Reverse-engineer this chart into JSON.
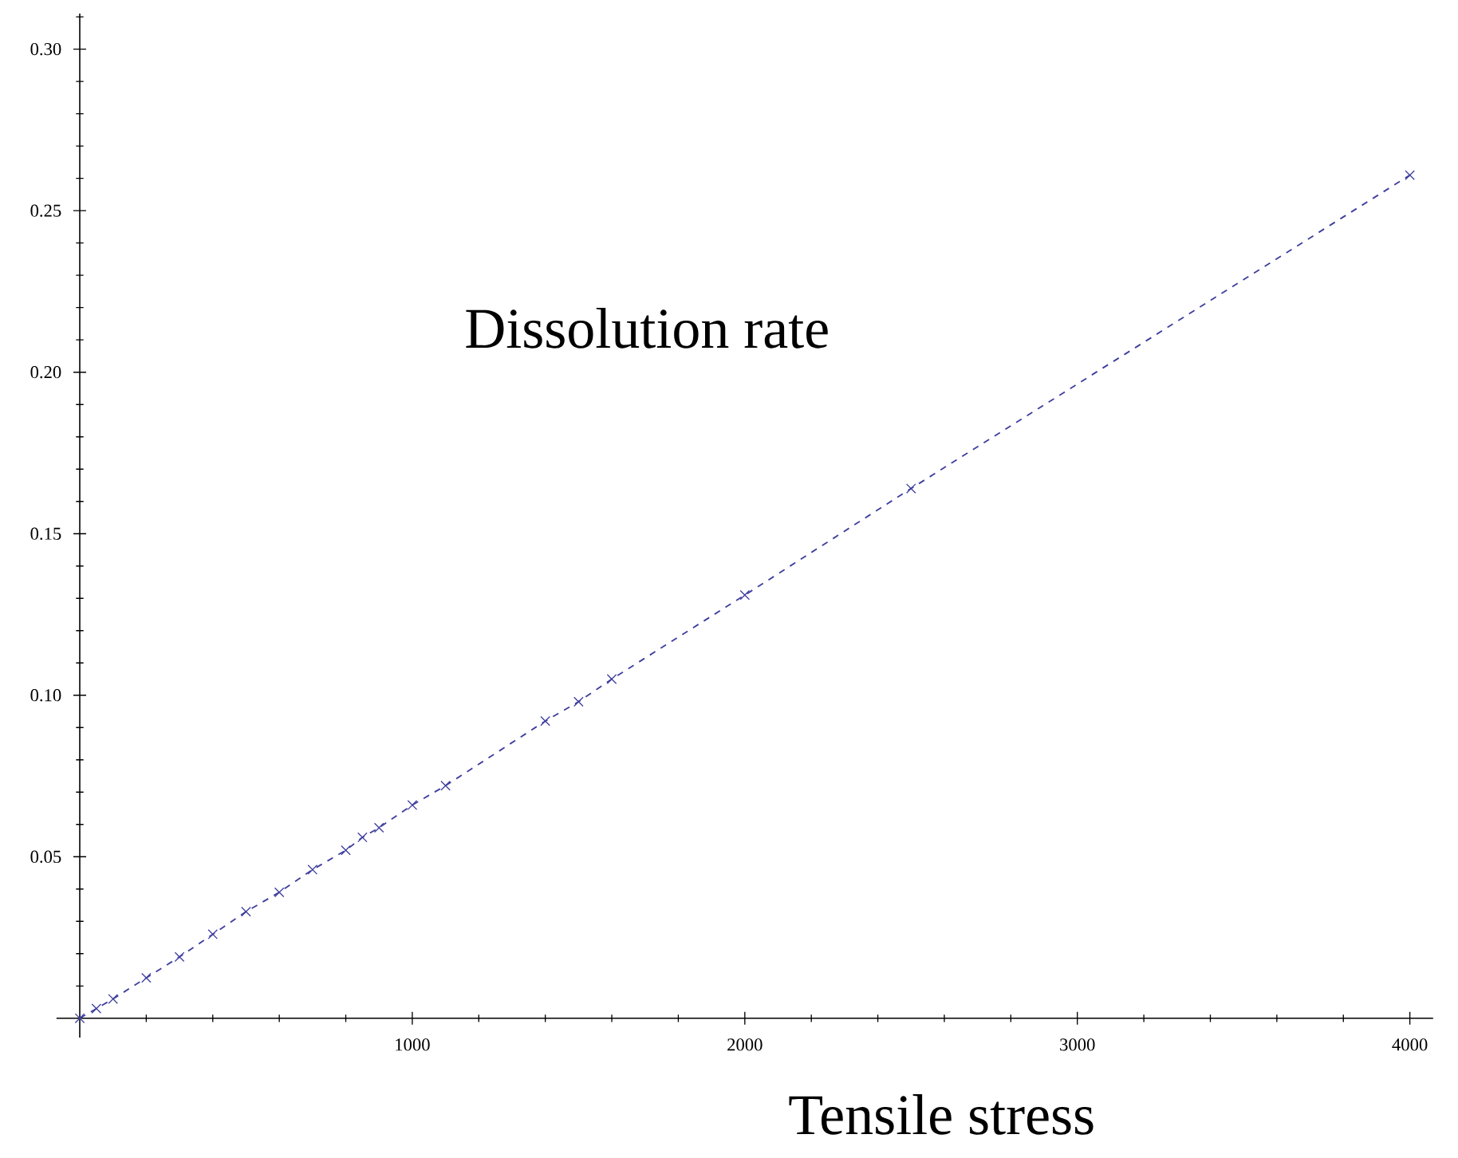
{
  "chart_data": {
    "type": "line",
    "xlabel": "Tensile stress",
    "ylabel": "Dissolution rate",
    "series": [
      {
        "color": "#3f3f9f",
        "marker": "cross",
        "line_style": "dashed",
        "x": [
          0,
          50,
          100,
          200,
          300,
          400,
          500,
          600,
          700,
          800,
          850,
          900,
          1000,
          1100,
          1400,
          1500,
          1600,
          2000,
          2500,
          4000
        ],
        "values": [
          0.0,
          0.003,
          0.006,
          0.0125,
          0.019,
          0.026,
          0.033,
          0.039,
          0.046,
          0.052,
          0.056,
          0.059,
          0.066,
          0.072,
          0.092,
          0.098,
          0.105,
          0.131,
          0.164,
          0.261
        ]
      }
    ],
    "xlim": [
      -70,
      4070
    ],
    "ylim": [
      -0.006,
      0.311
    ],
    "xticks": [
      {
        "value": 200,
        "label": null
      },
      {
        "value": 400,
        "label": null
      },
      {
        "value": 600,
        "label": null
      },
      {
        "value": 800,
        "label": null
      },
      1000,
      {
        "value": 1200,
        "label": null
      },
      {
        "value": 1400,
        "label": null
      },
      {
        "value": 1600,
        "label": null
      },
      {
        "value": 1800,
        "label": null
      },
      2000,
      {
        "value": 2200,
        "label": null
      },
      {
        "value": 2400,
        "label": null
      },
      {
        "value": 2600,
        "label": null
      },
      {
        "value": 2800,
        "label": null
      },
      3000,
      {
        "value": 3200,
        "label": null
      },
      {
        "value": 3400,
        "label": null
      },
      {
        "value": 3600,
        "label": null
      },
      {
        "value": 3800,
        "label": null
      },
      4000
    ],
    "yticks": [
      {
        "value": 0.01,
        "label": null
      },
      {
        "value": 0.02,
        "label": null
      },
      {
        "value": 0.03,
        "label": null
      },
      {
        "value": 0.04,
        "label": null
      },
      {
        "value": 0.05,
        "label": "0.05"
      },
      {
        "value": 0.06,
        "label": null
      },
      {
        "value": 0.07,
        "label": null
      },
      {
        "value": 0.08,
        "label": null
      },
      {
        "value": 0.09,
        "label": null
      },
      {
        "value": 0.1,
        "label": "0.10"
      },
      {
        "value": 0.11,
        "label": null
      },
      {
        "value": 0.12,
        "label": null
      },
      {
        "value": 0.13,
        "label": null
      },
      {
        "value": 0.14,
        "label": null
      },
      {
        "value": 0.15,
        "label": "0.15"
      },
      {
        "value": 0.16,
        "label": null
      },
      {
        "value": 0.17,
        "label": null
      },
      {
        "value": 0.18,
        "label": null
      },
      {
        "value": 0.19,
        "label": null
      },
      {
        "value": 0.2,
        "label": "0.20"
      },
      {
        "value": 0.21,
        "label": null
      },
      {
        "value": 0.22,
        "label": null
      },
      {
        "value": 0.23,
        "label": null
      },
      {
        "value": 0.24,
        "label": null
      },
      {
        "value": 0.25,
        "label": "0.25"
      },
      {
        "value": 0.26,
        "label": null
      },
      {
        "value": 0.27,
        "label": null
      },
      {
        "value": 0.28,
        "label": null
      },
      {
        "value": 0.29,
        "label": null
      },
      {
        "value": 0.3,
        "label": "0.30"
      },
      {
        "value": 0.31,
        "label": null
      }
    ],
    "grid": false
  }
}
